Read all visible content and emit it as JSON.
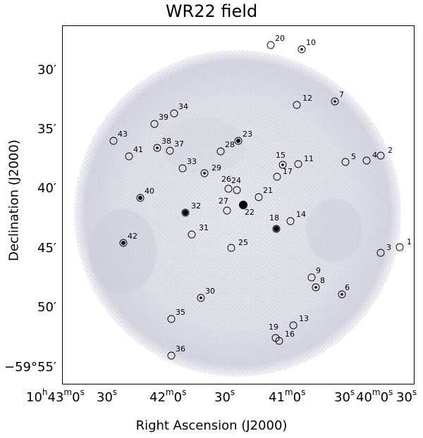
{
  "figure": {
    "title": "WR22 field",
    "xlabel": "Right Ascension (J2000)",
    "ylabel": "Declination (J2000)",
    "y_ticks": [
      "30′",
      "35′",
      "40′",
      "45′",
      "50′",
      "−59°55′"
    ],
    "x_ticks": [
      {
        "h": "10",
        "h_unit": "h",
        "m": "43",
        "m_unit": "m",
        "s": "0",
        "s_unit": "s",
        "kind": "full"
      },
      {
        "s": "30",
        "s_unit": "s",
        "kind": "sec"
      },
      {
        "m": "42",
        "m_unit": "m",
        "s": "0",
        "s_unit": "s",
        "kind": "minsec"
      },
      {
        "s": "30",
        "s_unit": "s",
        "kind": "sec"
      },
      {
        "m": "41",
        "m_unit": "m",
        "s": "0",
        "s_unit": "s",
        "kind": "minsec"
      },
      {
        "s": "30",
        "s_unit": "s",
        "kind": "sec"
      },
      {
        "m": "40",
        "m_unit": "m",
        "s": "0",
        "s_unit": "s",
        "kind": "minsec"
      },
      {
        "s": "30",
        "s_unit": "s",
        "kind": "sec"
      }
    ],
    "sources": [
      {
        "id": "1",
        "dot": false
      },
      {
        "id": "2",
        "dot": false
      },
      {
        "id": "3",
        "dot": false
      },
      {
        "id": "4",
        "dot": false
      },
      {
        "id": "5",
        "dot": false
      },
      {
        "id": "6",
        "dot": true
      },
      {
        "id": "7",
        "dot": true
      },
      {
        "id": "8",
        "dot": true
      },
      {
        "id": "9",
        "dot": false
      },
      {
        "id": "10",
        "dot": true
      },
      {
        "id": "11",
        "dot": false
      },
      {
        "id": "12",
        "dot": false
      },
      {
        "id": "13",
        "dot": false
      },
      {
        "id": "14",
        "dot": false
      },
      {
        "id": "15",
        "dot": true
      },
      {
        "id": "16",
        "dot": false
      },
      {
        "id": "17",
        "dot": false
      },
      {
        "id": "18",
        "dot": true
      },
      {
        "id": "19",
        "dot": false
      },
      {
        "id": "20",
        "dot": false
      },
      {
        "id": "21",
        "dot": false
      },
      {
        "id": "22",
        "dot": true
      },
      {
        "id": "23",
        "dot": true
      },
      {
        "id": "24",
        "dot": false
      },
      {
        "id": "25",
        "dot": false
      },
      {
        "id": "26",
        "dot": false
      },
      {
        "id": "27",
        "dot": false
      },
      {
        "id": "28",
        "dot": false
      },
      {
        "id": "29",
        "dot": true
      },
      {
        "id": "30",
        "dot": true
      },
      {
        "id": "31",
        "dot": false
      },
      {
        "id": "32",
        "dot": true
      },
      {
        "id": "33",
        "dot": false
      },
      {
        "id": "34",
        "dot": false
      },
      {
        "id": "35",
        "dot": false
      },
      {
        "id": "36",
        "dot": false
      },
      {
        "id": "37",
        "dot": false
      },
      {
        "id": "38",
        "dot": true
      },
      {
        "id": "39",
        "dot": false
      },
      {
        "id": "40",
        "dot": true
      },
      {
        "id": "41",
        "dot": false
      },
      {
        "id": "42",
        "dot": true
      },
      {
        "id": "43",
        "dot": false
      }
    ]
  }
}
